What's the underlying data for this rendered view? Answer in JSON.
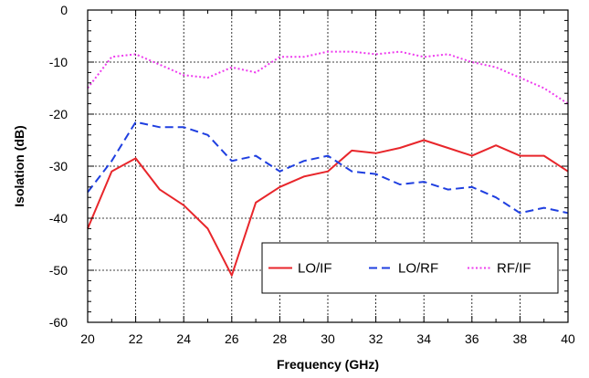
{
  "chart_data": {
    "type": "line",
    "xlabel": "Frequency (GHz)",
    "ylabel": "Isolation (dB)",
    "xlim": [
      20,
      40
    ],
    "ylim": [
      -60,
      0
    ],
    "xticks": [
      20,
      22,
      24,
      26,
      28,
      30,
      32,
      34,
      36,
      38,
      40
    ],
    "yticks": [
      0,
      -10,
      -20,
      -30,
      -40,
      -50,
      -60
    ],
    "grid": true,
    "legend_position": "bottom-right",
    "x": [
      20,
      21,
      22,
      23,
      24,
      25,
      26,
      27,
      28,
      29,
      30,
      31,
      32,
      33,
      34,
      35,
      36,
      37,
      38,
      39,
      40
    ],
    "series": [
      {
        "name": "LO/IF",
        "color": "#e8262b",
        "style": "solid",
        "values": [
          -42,
          -31,
          -28.5,
          -34.5,
          -37.5,
          -42,
          -51,
          -37,
          -34,
          -32,
          -31,
          -27,
          -27.5,
          -26.5,
          -25,
          -26.5,
          -28,
          -26,
          -28,
          -28,
          -31
        ]
      },
      {
        "name": "LO/RF",
        "color": "#1f3fe0",
        "style": "dashed",
        "values": [
          -35,
          -29,
          -21.5,
          -22.5,
          -22.5,
          -24,
          -29,
          -28,
          -31,
          -29,
          -28,
          -31,
          -31.5,
          -33.5,
          -33,
          -34.5,
          -34,
          -36,
          -39,
          -38,
          -39
        ]
      },
      {
        "name": "RF/IF",
        "color": "#ee3cee",
        "style": "dotted",
        "values": [
          -15,
          -9,
          -8.5,
          -10.5,
          -12.5,
          -13,
          -11,
          -12,
          -9,
          -9,
          -8,
          -8,
          -8.5,
          -8,
          -9,
          -8.5,
          -10,
          -11,
          -13,
          -15,
          -18
        ]
      }
    ]
  }
}
